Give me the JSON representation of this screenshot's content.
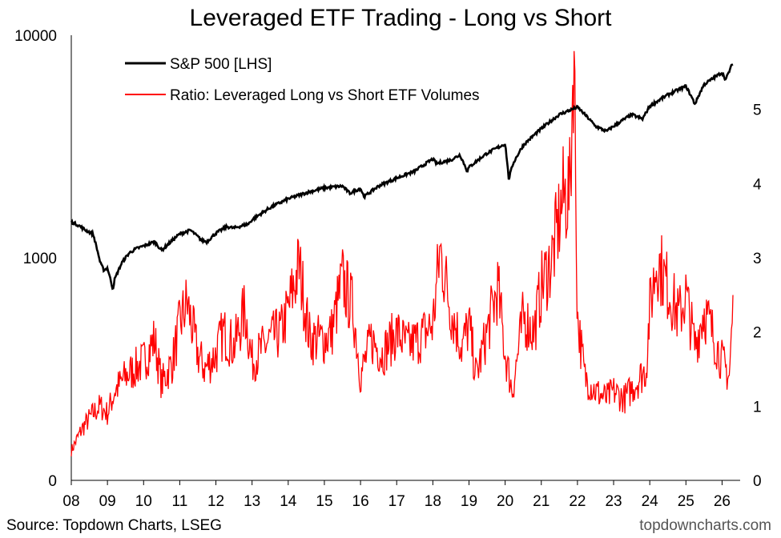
{
  "colors": {
    "sp500": "#000000",
    "ratio": "#ff0000",
    "axis": "#000000"
  },
  "footer": {
    "source": "Source: Topdown Charts, LSEG",
    "site": "topdowncharts.com"
  },
  "chart_data": {
    "type": "line",
    "title": "Leveraged ETF Trading - Long vs Short",
    "grid": false,
    "legend_position": "top-left",
    "x_ticks": [
      "08",
      "09",
      "10",
      "11",
      "12",
      "13",
      "14",
      "15",
      "16",
      "17",
      "18",
      "19",
      "20",
      "21",
      "22",
      "23",
      "24",
      "25",
      "26"
    ],
    "x_range": [
      2008.0,
      2026.5
    ],
    "left_axis": {
      "scale": "log",
      "range": [
        0,
        10000
      ],
      "ticks": [
        {
          "value": 10000,
          "label": "10000"
        },
        {
          "value": 1000,
          "label": "1000"
        },
        {
          "value": 0,
          "label": "0"
        }
      ]
    },
    "right_axis": {
      "scale": "linear",
      "range": [
        0,
        6
      ],
      "ticks": [
        0,
        1,
        2,
        3,
        4,
        5
      ]
    },
    "series": [
      {
        "name": "S&P 500 [LHS]",
        "axis": "left",
        "x": [
          2008.0,
          2008.2,
          2008.4,
          2008.6,
          2008.8,
          2008.9,
          2009.0,
          2009.15,
          2009.2,
          2009.4,
          2009.6,
          2009.8,
          2010.0,
          2010.3,
          2010.5,
          2010.7,
          2011.0,
          2011.3,
          2011.6,
          2011.75,
          2012.0,
          2012.3,
          2012.5,
          2012.9,
          2013.0,
          2013.5,
          2014.0,
          2014.5,
          2015.0,
          2015.5,
          2015.7,
          2016.0,
          2016.1,
          2016.5,
          2017.0,
          2017.5,
          2018.0,
          2018.1,
          2018.5,
          2018.75,
          2018.95,
          2019.0,
          2019.5,
          2020.0,
          2020.1,
          2020.22,
          2020.5,
          2021.0,
          2021.5,
          2022.0,
          2022.5,
          2022.8,
          2023.0,
          2023.5,
          2023.8,
          2024.0,
          2024.5,
          2025.0,
          2025.25,
          2025.5,
          2026.0,
          2026.1,
          2026.3
        ],
        "y": [
          1450,
          1400,
          1330,
          1280,
          950,
          880,
          900,
          720,
          800,
          950,
          1050,
          1100,
          1130,
          1180,
          1080,
          1160,
          1280,
          1330,
          1200,
          1180,
          1290,
          1380,
          1360,
          1420,
          1480,
          1680,
          1840,
          1960,
          2060,
          2100,
          1950,
          2050,
          1880,
          2100,
          2280,
          2450,
          2780,
          2650,
          2750,
          2900,
          2450,
          2550,
          2950,
          3250,
          2250,
          2650,
          3200,
          3800,
          4400,
          4750,
          3900,
          3700,
          3900,
          4400,
          4200,
          4800,
          5400,
          5900,
          4900,
          6000,
          6800,
          6300,
          7500
        ]
      },
      {
        "name": "Ratio: Leveraged Long vs Short ETF Volumes",
        "axis": "right",
        "x": [
          2008.0,
          2008.3,
          2008.6,
          2008.8,
          2009.0,
          2009.2,
          2009.5,
          2010.0,
          2010.3,
          2010.5,
          2010.8,
          2011.0,
          2011.2,
          2011.5,
          2011.7,
          2012.0,
          2012.2,
          2012.5,
          2012.8,
          2013.0,
          2013.5,
          2013.8,
          2014.0,
          2014.3,
          2014.6,
          2015.0,
          2015.2,
          2015.5,
          2015.8,
          2016.0,
          2016.3,
          2016.6,
          2017.0,
          2017.3,
          2017.6,
          2018.0,
          2018.2,
          2018.5,
          2018.8,
          2019.0,
          2019.2,
          2019.5,
          2019.8,
          2020.0,
          2020.2,
          2020.5,
          2020.8,
          2021.0,
          2021.3,
          2021.6,
          2021.8,
          2021.9,
          2022.0,
          2022.2,
          2022.5,
          2022.8,
          2023.0,
          2023.3,
          2023.6,
          2023.9,
          2024.0,
          2024.2,
          2024.5,
          2024.8,
          2025.0,
          2025.25,
          2025.5,
          2025.8,
          2026.0,
          2026.2,
          2026.3
        ],
        "y": [
          0.4,
          0.7,
          0.9,
          1.0,
          0.9,
          1.2,
          1.4,
          1.6,
          1.9,
          1.3,
          1.6,
          2.1,
          2.4,
          1.7,
          1.5,
          1.7,
          2.0,
          1.8,
          2.3,
          1.6,
          1.9,
          2.0,
          2.3,
          2.9,
          1.9,
          1.9,
          2.0,
          2.7,
          2.3,
          1.4,
          1.9,
          1.7,
          2.0,
          1.8,
          1.9,
          2.1,
          3.1,
          2.3,
          1.8,
          2.1,
          1.4,
          2.0,
          2.6,
          1.7,
          1.2,
          2.2,
          2.0,
          2.6,
          3.0,
          3.8,
          3.9,
          6.0,
          2.2,
          1.4,
          1.2,
          1.1,
          1.2,
          1.1,
          1.3,
          1.5,
          2.3,
          3.0,
          2.6,
          2.2,
          2.5,
          1.8,
          2.3,
          1.9,
          1.6,
          1.4,
          2.3
        ]
      }
    ]
  }
}
